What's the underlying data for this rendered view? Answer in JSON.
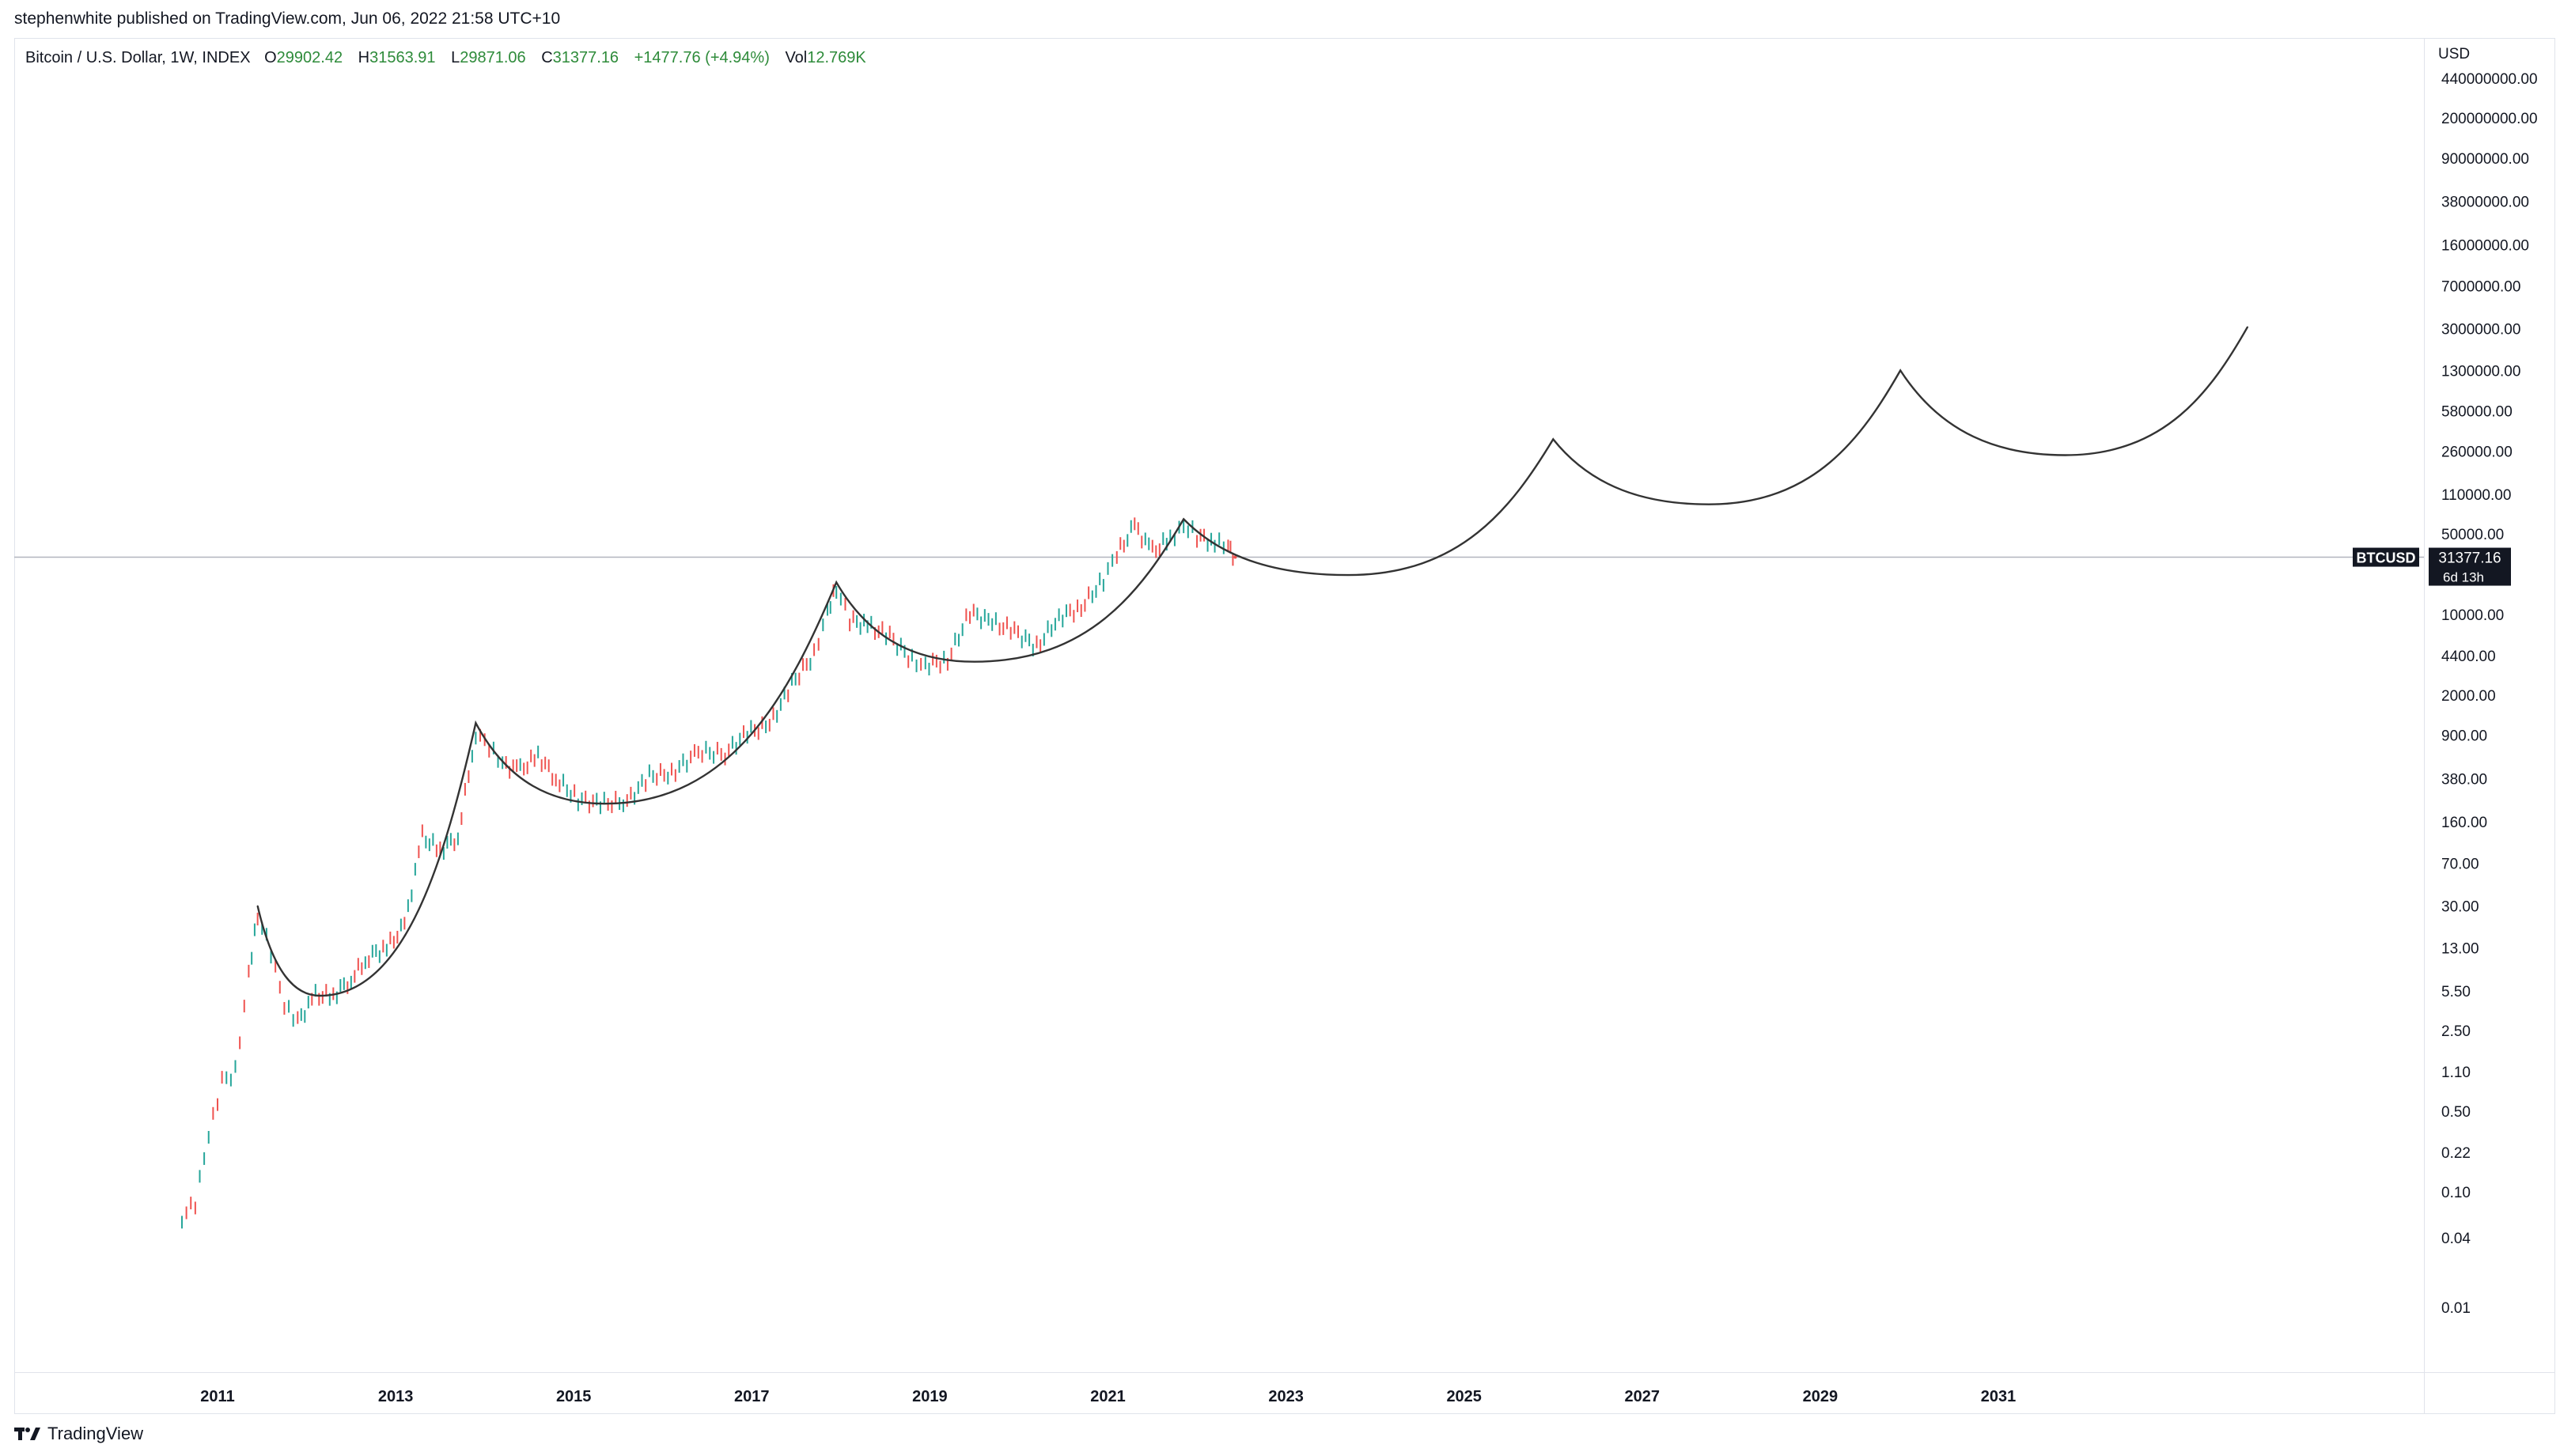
{
  "header": {
    "published": "stephenwhite published on TradingView.com, Jun 06, 2022 21:58 UTC+10"
  },
  "legend": {
    "symbol": "Bitcoin / U.S. Dollar, 1W, INDEX",
    "o_label": "O",
    "o_value": "29902.42",
    "h_label": "H",
    "h_value": "31563.91",
    "l_label": "L",
    "l_value": "29871.06",
    "c_label": "C",
    "c_value": "31377.16",
    "change": "+1477.76 (+4.94%)",
    "vol_label": "Vol",
    "vol_value": "12.769K"
  },
  "currency": "USD",
  "price_tag": {
    "symbol": "BTCUSD",
    "price": "31377.16",
    "countdown": "6d 13h"
  },
  "footer": {
    "brand": "TradingView"
  },
  "colors": {
    "up": "#26a69a",
    "down": "#ef5350",
    "line": "#333333",
    "legend_value": "#2e8b3a",
    "tag_bg": "#131722",
    "tag_text": "#ffffff"
  },
  "chart_data": {
    "type": "line",
    "title": "Bitcoin / U.S. Dollar, 1W, INDEX",
    "y_scale": "log",
    "ylabel": "USD",
    "xlim": [
      2009.6,
      2034.8
    ],
    "ylim": [
      0.005,
      500000000
    ],
    "x_ticks": [
      "2011",
      "2013",
      "2015",
      "2017",
      "2019",
      "2021",
      "2023",
      "2025",
      "2027",
      "2029",
      "2031"
    ],
    "y_ticks": [
      "440000000.00",
      "200000000.00",
      "90000000.00",
      "38000000.00",
      "16000000.00",
      "7000000.00",
      "3000000.00",
      "1300000.00",
      "580000.00",
      "260000.00",
      "110000.00",
      "50000.00",
      "10000.00",
      "4400.00",
      "2000.00",
      "900.00",
      "380.00",
      "160.00",
      "70.00",
      "30.00",
      "13.00",
      "5.50",
      "2.50",
      "1.10",
      "0.50",
      "0.22",
      "0.10",
      "0.04",
      "0.01"
    ],
    "current_price": 31377.16,
    "series": [
      {
        "kind": "price",
        "x": [
          2010.6,
          2010.75,
          2010.9,
          2011.05,
          2011.2,
          2011.35,
          2011.45,
          2011.6,
          2011.75,
          2011.9,
          2012.1,
          2012.3,
          2012.5,
          2012.7,
          2012.9,
          2013.1,
          2013.3,
          2013.5,
          2013.7,
          2013.9,
          2014.05,
          2014.2,
          2014.4,
          2014.6,
          2014.8,
          2015.05,
          2015.3,
          2015.6,
          2015.85,
          2016.1,
          2016.4,
          2016.7,
          2016.95,
          2017.2,
          2017.45,
          2017.7,
          2017.85,
          2017.95,
          2018.1,
          2018.3,
          2018.55,
          2018.8,
          2018.95,
          2019.2,
          2019.45,
          2019.7,
          2019.95,
          2020.2,
          2020.45,
          2020.7,
          2020.95,
          2021.1,
          2021.3,
          2021.5,
          2021.7,
          2021.85,
          2022.0,
          2022.2,
          2022.35,
          2022.43
        ],
        "y": [
          0.06,
          0.08,
          0.3,
          0.9,
          1.1,
          8,
          25,
          12,
          4,
          3,
          5,
          5,
          7,
          11,
          13,
          20,
          120,
          90,
          120,
          950,
          700,
          500,
          450,
          600,
          380,
          250,
          230,
          240,
          400,
          420,
          650,
          620,
          950,
          1100,
          2500,
          4500,
          11000,
          17000,
          9000,
          8000,
          6500,
          4000,
          3700,
          4000,
          10500,
          8500,
          7200,
          5200,
          9500,
          11500,
          20000,
          33000,
          58000,
          35000,
          45000,
          60000,
          48000,
          42000,
          38000,
          31377.16
        ]
      },
      {
        "kind": "arc-projection",
        "x": [
          2011.45,
          2012.15,
          2013.9,
          2015.35,
          2017.95,
          2019.5,
          2021.85,
          2023.7,
          2026.0,
          2027.75,
          2029.9,
          2031.75,
          2033.8
        ],
        "y": [
          30,
          5,
          1150,
          230,
          19000,
          3900,
          67000,
          22000,
          330000,
          90000,
          1300000,
          240000,
          3100000
        ]
      }
    ]
  }
}
